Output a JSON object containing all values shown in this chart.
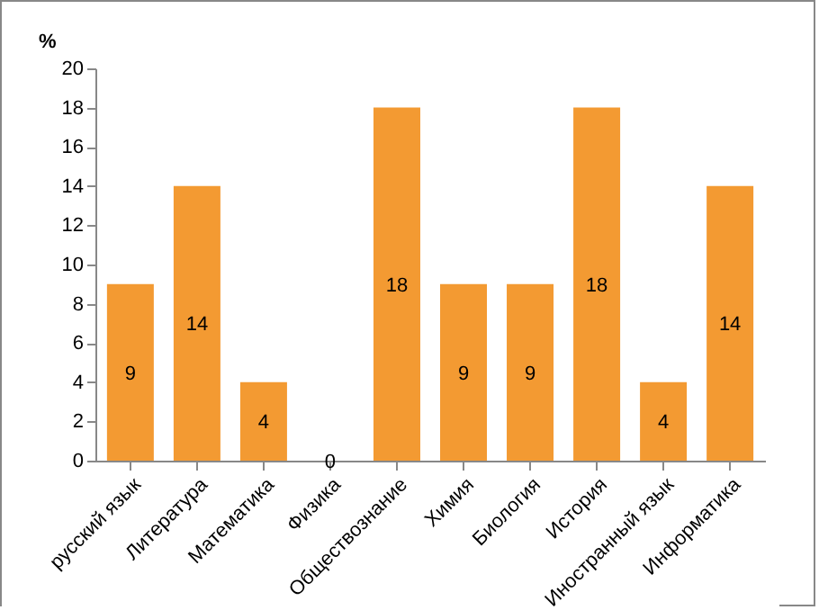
{
  "chart_data": {
    "type": "bar",
    "ylabel": "%",
    "categories": [
      "русский язык",
      "Литература",
      "Математика",
      "Физика",
      "Обществознание",
      "Химия",
      "Биология",
      "История",
      "Иностранный язык",
      "Информатика"
    ],
    "values": [
      9,
      14,
      4,
      0,
      18,
      9,
      9,
      18,
      4,
      14
    ],
    "color": "#f39a32",
    "ylim": [
      0,
      20
    ],
    "yticks": [
      0,
      2,
      4,
      6,
      8,
      10,
      12,
      14,
      16,
      18,
      20
    ],
    "data_labels": true,
    "grid": false
  }
}
